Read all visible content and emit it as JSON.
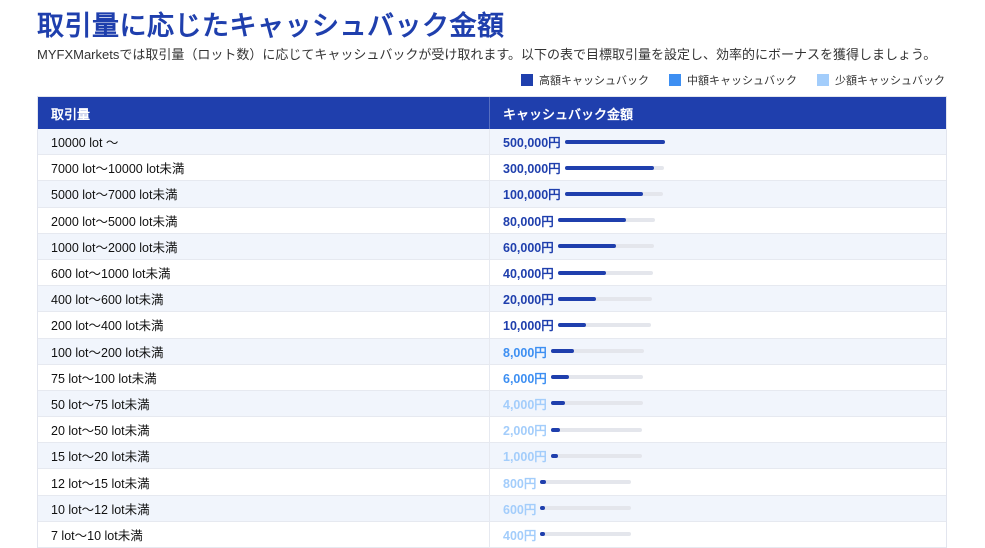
{
  "page": {
    "title": "取引量に応じたキャッシュバック金額",
    "subtitle": "MYFXMarketsでは取引量（ロット数）に応じてキャッシュバックが受け取れます。以下の表で目標取引量を設定し、効率的にボーナスを獲得しましょう。"
  },
  "legend": [
    {
      "label": "高額キャッシュバック",
      "color": "#1f3fad"
    },
    {
      "label": "中額キャッシュバック",
      "color": "#3d8ff2"
    },
    {
      "label": "少額キャッシュバック",
      "color": "#a3cdfb"
    }
  ],
  "table": {
    "headers": [
      "取引量",
      "キャッシュバック金額"
    ],
    "rows": [
      {
        "volume": "10000 lot ～",
        "amount": "500,000円",
        "tier": "high",
        "fill": 1.0
      },
      {
        "volume": "7000 lot～10000 lot未満",
        "amount": "300,000円",
        "tier": "high",
        "fill": 0.9
      },
      {
        "volume": "5000 lot～7000 lot未満",
        "amount": "100,000円",
        "tier": "high",
        "fill": 0.8
      },
      {
        "volume": "2000 lot～5000 lot未満",
        "amount": "80,000円",
        "tier": "high",
        "fill": 0.7
      },
      {
        "volume": "1000 lot～2000 lot未満",
        "amount": "60,000円",
        "tier": "high",
        "fill": 0.6
      },
      {
        "volume": "600 lot～1000 lot未満",
        "amount": "40,000円",
        "tier": "high",
        "fill": 0.5
      },
      {
        "volume": "400 lot～600 lot未満",
        "amount": "20,000円",
        "tier": "high",
        "fill": 0.4
      },
      {
        "volume": "200 lot～400 lot未満",
        "amount": "10,000円",
        "tier": "high",
        "fill": 0.3
      },
      {
        "volume": "100 lot～200 lot未満",
        "amount": "8,000円",
        "tier": "mid",
        "fill": 0.25
      },
      {
        "volume": "75 lot～100 lot未満",
        "amount": "6,000円",
        "tier": "mid",
        "fill": 0.2
      },
      {
        "volume": "50 lot～75 lot未満",
        "amount": "4,000円",
        "tier": "low",
        "fill": 0.15
      },
      {
        "volume": "20 lot～50 lot未満",
        "amount": "2,000円",
        "tier": "low",
        "fill": 0.1
      },
      {
        "volume": "15 lot～20 lot未満",
        "amount": "1,000円",
        "tier": "low",
        "fill": 0.08
      },
      {
        "volume": "12 lot～15 lot未満",
        "amount": "800円",
        "tier": "low",
        "fill": 0.07
      },
      {
        "volume": "10 lot～12 lot未満",
        "amount": "600円",
        "tier": "low",
        "fill": 0.06
      },
      {
        "volume": "7 lot～10 lot未満",
        "amount": "400円",
        "tier": "low",
        "fill": 0.05
      }
    ]
  },
  "colors": {
    "high_text": "#1f3fad",
    "mid_text": "#3d8ff2",
    "low_text": "#a3cdfb",
    "bar": "#1f3fad"
  }
}
